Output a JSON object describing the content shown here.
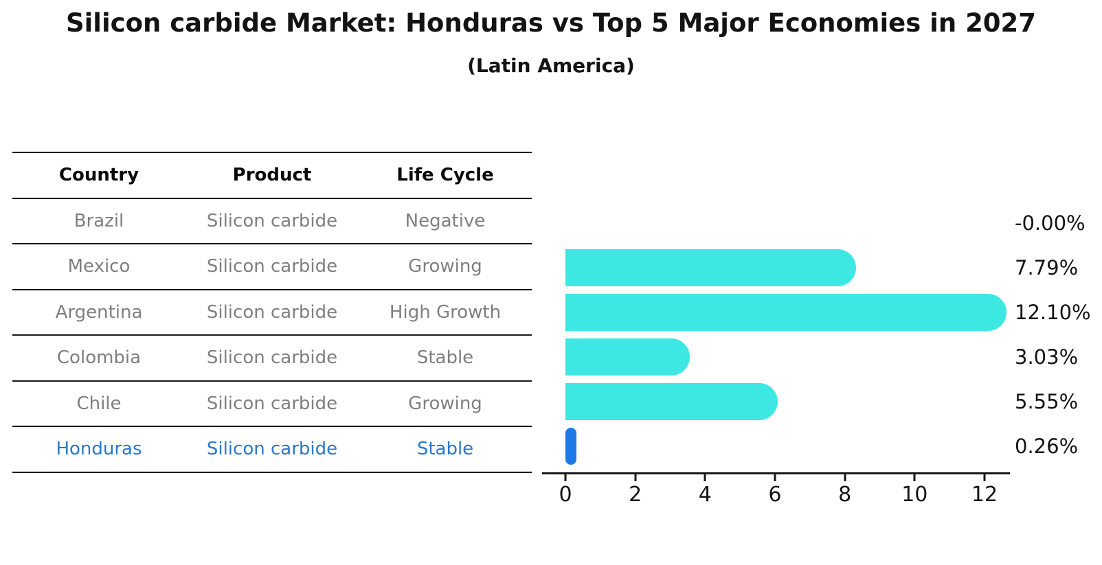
{
  "title": "Silicon carbide Market: Honduras vs Top 5 Major Economies in 2027",
  "subtitle": "(Latin America)",
  "table": {
    "headers": [
      "Country",
      "Product",
      "Life Cycle"
    ],
    "rows": [
      {
        "country": "Brazil",
        "product": "Silicon carbide",
        "life_cycle": "Negative",
        "highlight": false
      },
      {
        "country": "Mexico",
        "product": "Silicon carbide",
        "life_cycle": "Growing",
        "highlight": false
      },
      {
        "country": "Argentina",
        "product": "Silicon carbide",
        "life_cycle": "High Growth",
        "highlight": false
      },
      {
        "country": "Colombia",
        "product": "Silicon carbide",
        "life_cycle": "Stable",
        "highlight": false
      },
      {
        "country": "Chile",
        "product": "Silicon carbide",
        "life_cycle": "Growing",
        "highlight": false
      },
      {
        "country": "Honduras",
        "product": "Silicon carbide",
        "life_cycle": "Stable",
        "highlight": true
      }
    ]
  },
  "chart_data": {
    "type": "bar",
    "orientation": "horizontal",
    "title": "Silicon carbide Market: Honduras vs Top 5 Major Economies in 2027",
    "subtitle": "(Latin America)",
    "categories": [
      "Brazil",
      "Mexico",
      "Argentina",
      "Colombia",
      "Chile",
      "Honduras"
    ],
    "values": [
      -0.0,
      7.79,
      12.1,
      3.03,
      5.55,
      0.26
    ],
    "value_labels": [
      "-0.00%",
      "7.79%",
      "12.10%",
      "3.03%",
      "5.55%",
      "0.26%"
    ],
    "x_ticks": [
      0,
      2,
      4,
      6,
      8,
      10,
      12
    ],
    "xlim": [
      -0.65,
      12.75
    ],
    "grid": false,
    "legend": "none",
    "bar_color": "#3ee8e2",
    "highlight_bar_color": "#1e79e8",
    "highlight_index": 5
  },
  "colors": {
    "background": "#ffffff",
    "heading_text": "#131313",
    "table_text": "#7f7f7f",
    "highlight_text": "#2878cc",
    "bar": "#3ee8e2",
    "highlight_bar": "#1e79e8",
    "axis": "#171717"
  }
}
